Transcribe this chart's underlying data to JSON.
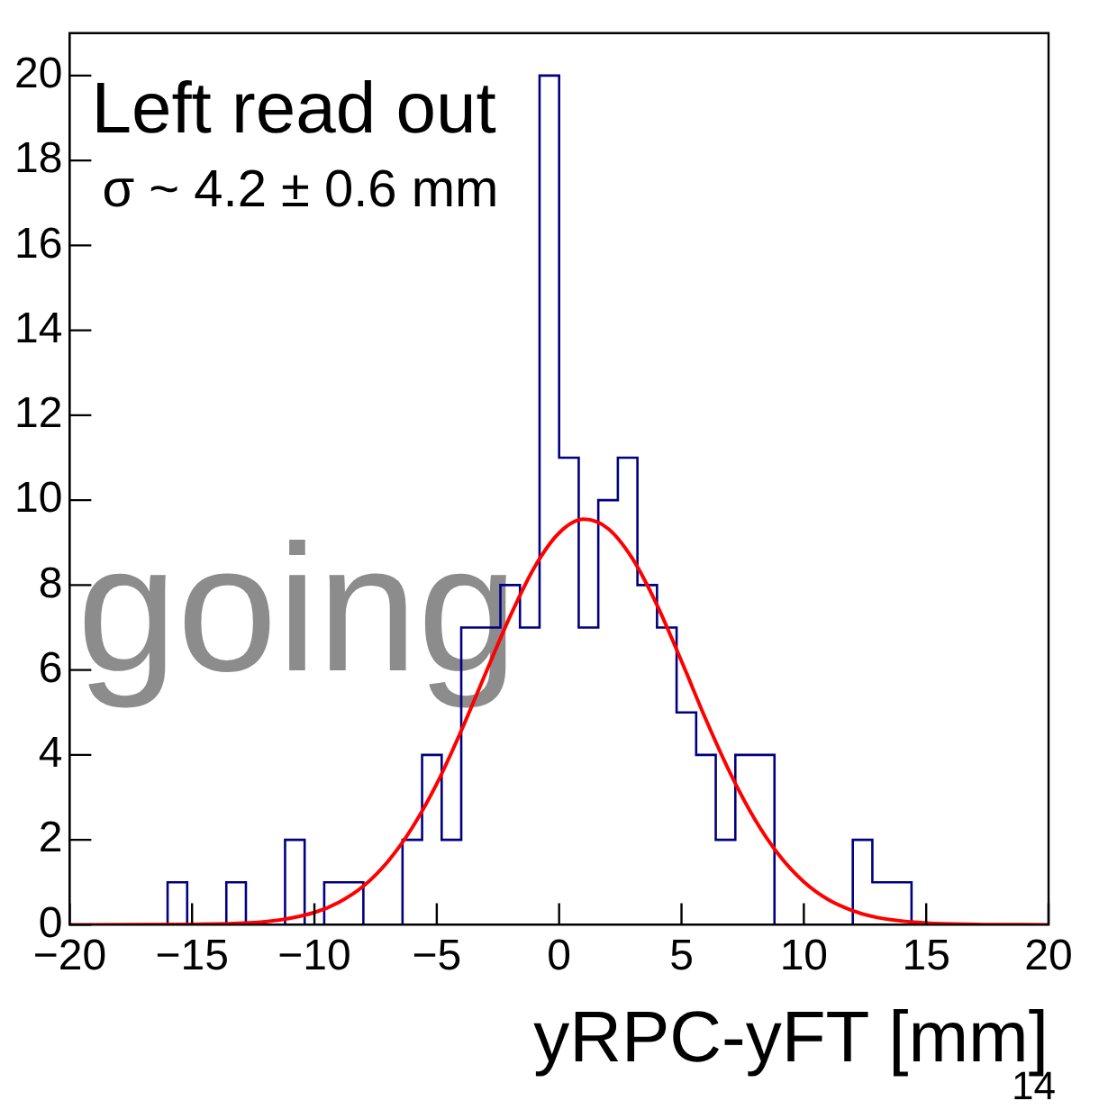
{
  "chart_data": {
    "type": "histogram",
    "xlabel": "yRPC-yFT [mm]",
    "annotations": [
      "Left read out",
      "σ ~ 4.2 ± 0.6 mm",
      "going",
      "14"
    ],
    "bins": [
      -20,
      -19.2,
      -18.4,
      -17.6,
      -16.8,
      -16,
      -15.2,
      -14.4,
      -13.6,
      -12.8,
      -12,
      -11.2,
      -10.4,
      -9.6,
      -8.8,
      -8,
      -7.2,
      -6.4,
      -5.6,
      -4.8,
      -4,
      -3.2,
      -2.4,
      -1.6,
      -0.8,
      0,
      0.8,
      1.6,
      2.4,
      3.2,
      4,
      4.8,
      5.6,
      6.4,
      7.2,
      8,
      8.8,
      9.6,
      10.4,
      11.2,
      12,
      12.8,
      13.6,
      14.4,
      15.2,
      16,
      16.8,
      17.6,
      18.4,
      19.2,
      20
    ],
    "series": [
      {
        "type": "histogram",
        "color": "#000080",
        "values": [
          0,
          0,
          0,
          0,
          0,
          1,
          0,
          0,
          1,
          0,
          0,
          2,
          0,
          1,
          1,
          0,
          0,
          2,
          4,
          2,
          7,
          7,
          8,
          7,
          20,
          11,
          7,
          10,
          11,
          8,
          7,
          5,
          4,
          2,
          4,
          4,
          0,
          0,
          0,
          0,
          2,
          1,
          1,
          0,
          0,
          0,
          0,
          0,
          0,
          0
        ]
      },
      {
        "type": "line",
        "color": "#ff0000",
        "x": [
          -20,
          -15,
          -12,
          -10,
          -9,
          -8,
          -7,
          -6,
          -5,
          -4,
          -3,
          -2,
          -1,
          0,
          1,
          2,
          3,
          4,
          5,
          6,
          7,
          8,
          9,
          10,
          11,
          12,
          13,
          15,
          17,
          20
        ],
        "values": [
          0,
          0.01,
          0.07,
          0.29,
          0.53,
          0.91,
          1.49,
          2.29,
          3.32,
          4.57,
          5.93,
          7.27,
          8.43,
          9.23,
          9.55,
          9.33,
          8.62,
          7.53,
          6.21,
          4.83,
          3.56,
          2.48,
          1.63,
          1.01,
          0.59,
          0.33,
          0.17,
          0.04,
          0.01,
          0
        ]
      }
    ],
    "xlim": [
      -20,
      20
    ],
    "ylim": [
      0,
      21
    ],
    "xticks": [
      {
        "value": -20,
        "label": "−20"
      },
      {
        "value": -15,
        "label": "−15"
      },
      {
        "value": -10,
        "label": "−10"
      },
      {
        "value": -5,
        "label": "−5"
      },
      0,
      5,
      10,
      15,
      20
    ],
    "yticks": [
      0,
      2,
      4,
      6,
      8,
      10,
      12,
      14,
      16,
      18,
      20
    ],
    "grid": false,
    "legend": false
  }
}
